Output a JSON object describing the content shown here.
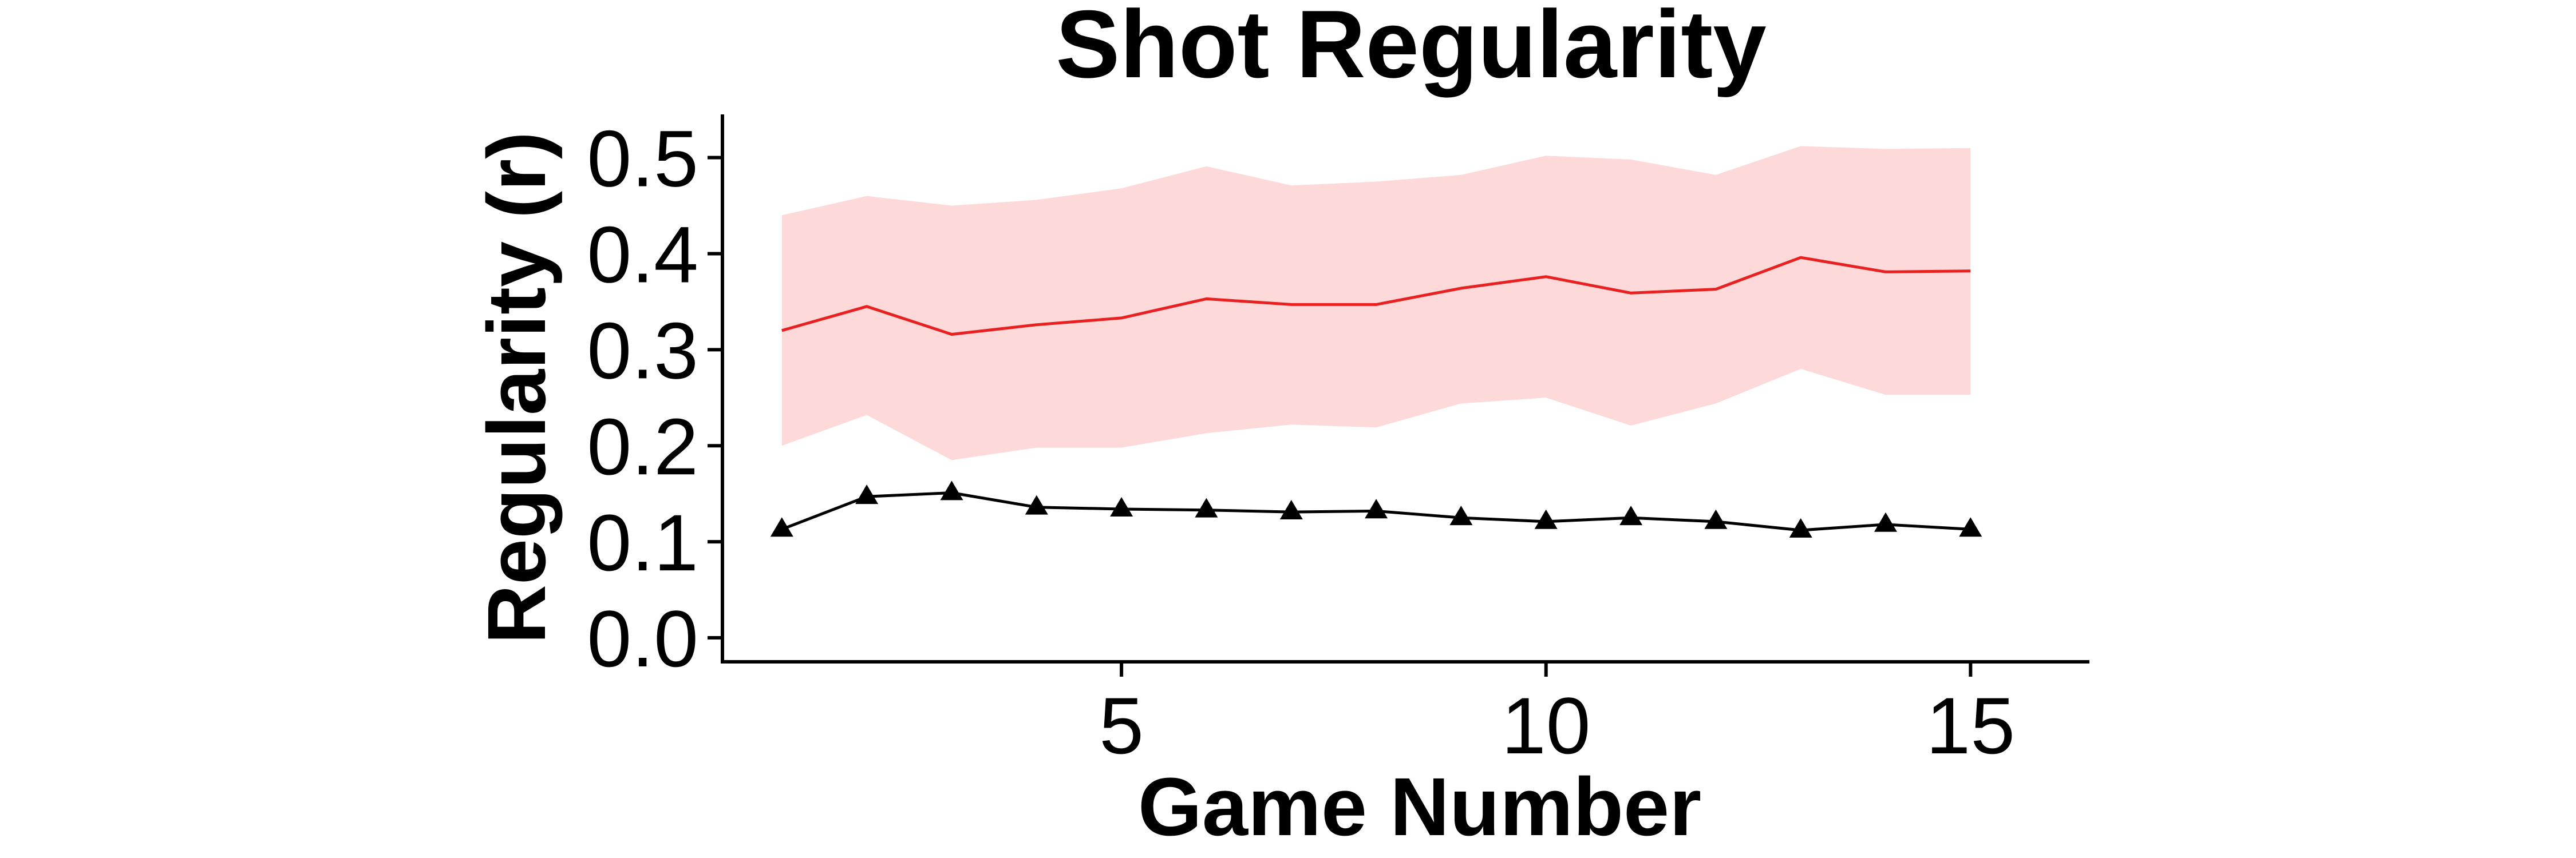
{
  "chart_data": {
    "type": "line",
    "title": "Shot Regularity",
    "xlabel": "Game Number",
    "ylabel": "Regularity (r)",
    "xlim": [
      0.3,
      16.4
    ],
    "ylim": [
      -0.025,
      0.545
    ],
    "xticks": [
      5,
      10,
      15
    ],
    "xtick_labels": [
      "5",
      "10",
      "15"
    ],
    "yticks": [
      0.0,
      0.1,
      0.2,
      0.3,
      0.4,
      0.5
    ],
    "ytick_labels": [
      "0.0",
      "0.1",
      "0.2",
      "0.3",
      "0.4",
      "0.5"
    ],
    "grid": false,
    "legend": "none",
    "x": [
      1,
      2,
      3,
      4,
      5,
      6,
      7,
      8,
      9,
      10,
      11,
      12,
      13,
      14,
      15
    ],
    "series": [
      {
        "color": "#e8201f",
        "marker": "none",
        "values": [
          0.32,
          0.345,
          0.316,
          0.326,
          0.333,
          0.353,
          0.347,
          0.347,
          0.364,
          0.376,
          0.359,
          0.363,
          0.396,
          0.381,
          0.382
        ],
        "band_upper": [
          0.44,
          0.46,
          0.45,
          0.456,
          0.468,
          0.491,
          0.471,
          0.475,
          0.482,
          0.502,
          0.498,
          0.482,
          0.512,
          0.509,
          0.51
        ],
        "band_lower": [
          0.2,
          0.232,
          0.185,
          0.198,
          0.198,
          0.213,
          0.222,
          0.219,
          0.244,
          0.25,
          0.221,
          0.244,
          0.28,
          0.253,
          0.253
        ],
        "band_color": "#fdd9da"
      },
      {
        "color": "#000000",
        "marker": "triangle",
        "values": [
          0.113,
          0.147,
          0.151,
          0.136,
          0.134,
          0.133,
          0.131,
          0.132,
          0.125,
          0.121,
          0.125,
          0.121,
          0.112,
          0.118,
          0.113
        ]
      }
    ]
  }
}
